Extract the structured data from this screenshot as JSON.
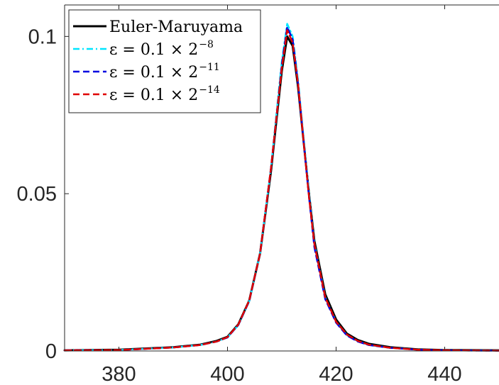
{
  "chart_data": {
    "type": "line",
    "title": "",
    "xlabel": "",
    "ylabel": "",
    "xlim": [
      370,
      450
    ],
    "ylim": [
      0,
      0.11
    ],
    "xticks": [
      380,
      400,
      420,
      440
    ],
    "xtick_labels": [
      "380",
      "400",
      "420",
      "440"
    ],
    "yticks": [
      0,
      0.05,
      0.1
    ],
    "ytick_labels": [
      "0",
      "0.05",
      "0.1"
    ],
    "grid": false,
    "legend_position": "top-left",
    "series": [
      {
        "name": "Euler-Maruyama",
        "legend_main": "Euler-Maruyama",
        "legend_sup": "",
        "color": "#000000",
        "style": "solid",
        "x": [
          370,
          380,
          390,
          395,
          398,
          400,
          402,
          404,
          406,
          408,
          409,
          410,
          411,
          412,
          413,
          414,
          415,
          416,
          418,
          420,
          422,
          424,
          426,
          430,
          435,
          440,
          450
        ],
        "y": [
          0.0002,
          0.0004,
          0.0012,
          0.002,
          0.0032,
          0.0045,
          0.0085,
          0.016,
          0.031,
          0.057,
          0.073,
          0.089,
          0.1,
          0.097,
          0.084,
          0.067,
          0.05,
          0.035,
          0.018,
          0.01,
          0.0055,
          0.0035,
          0.0023,
          0.0012,
          0.0005,
          0.0003,
          0.0002
        ]
      },
      {
        "name": "ε = 0.1 × 2^−8",
        "legend_main": "ε = 0.1 × 2",
        "legend_sup": "−8",
        "color": "#00e5ff",
        "style": "dash-dot",
        "x": [
          370,
          380,
          390,
          395,
          398,
          400,
          402,
          404,
          406,
          408,
          409,
          410,
          411,
          412,
          413,
          414,
          415,
          416,
          418,
          420,
          422,
          424,
          426,
          430,
          435,
          440,
          450
        ],
        "y": [
          0.0002,
          0.0003,
          0.0011,
          0.0019,
          0.003,
          0.0043,
          0.0082,
          0.0158,
          0.031,
          0.058,
          0.075,
          0.092,
          0.104,
          0.1,
          0.086,
          0.068,
          0.05,
          0.034,
          0.017,
          0.0092,
          0.005,
          0.0031,
          0.0019,
          0.001,
          0.0004,
          0.0002,
          0.0001
        ]
      },
      {
        "name": "ε = 0.1 × 2^−11",
        "legend_main": "ε = 0.1 × 2",
        "legend_sup": "−11",
        "color": "#0000e0",
        "style": "dashed",
        "x": [
          370,
          380,
          390,
          395,
          398,
          400,
          402,
          404,
          406,
          408,
          409,
          410,
          411,
          412,
          413,
          414,
          415,
          416,
          418,
          420,
          422,
          424,
          426,
          430,
          435,
          440,
          450
        ],
        "y": [
          0.0002,
          0.0003,
          0.0011,
          0.0019,
          0.003,
          0.0043,
          0.0083,
          0.0159,
          0.031,
          0.058,
          0.074,
          0.091,
          0.103,
          0.099,
          0.085,
          0.067,
          0.049,
          0.033,
          0.0165,
          0.009,
          0.0049,
          0.003,
          0.0019,
          0.001,
          0.0004,
          0.0002,
          0.0001
        ]
      },
      {
        "name": "ε = 0.1 × 2^−14",
        "legend_main": "ε = 0.1 × 2",
        "legend_sup": "−14",
        "color": "#e00000",
        "style": "dashed",
        "x": [
          370,
          380,
          390,
          395,
          398,
          400,
          402,
          404,
          406,
          408,
          409,
          410,
          411,
          412,
          413,
          414,
          415,
          416,
          418,
          420,
          422,
          424,
          426,
          430,
          435,
          440,
          450
        ],
        "y": [
          0.0002,
          0.0003,
          0.0011,
          0.0019,
          0.003,
          0.0044,
          0.0084,
          0.016,
          0.031,
          0.058,
          0.074,
          0.09,
          0.102,
          0.098,
          0.085,
          0.067,
          0.049,
          0.034,
          0.017,
          0.0093,
          0.0052,
          0.0032,
          0.002,
          0.001,
          0.0004,
          0.0002,
          0.0001
        ]
      }
    ]
  }
}
